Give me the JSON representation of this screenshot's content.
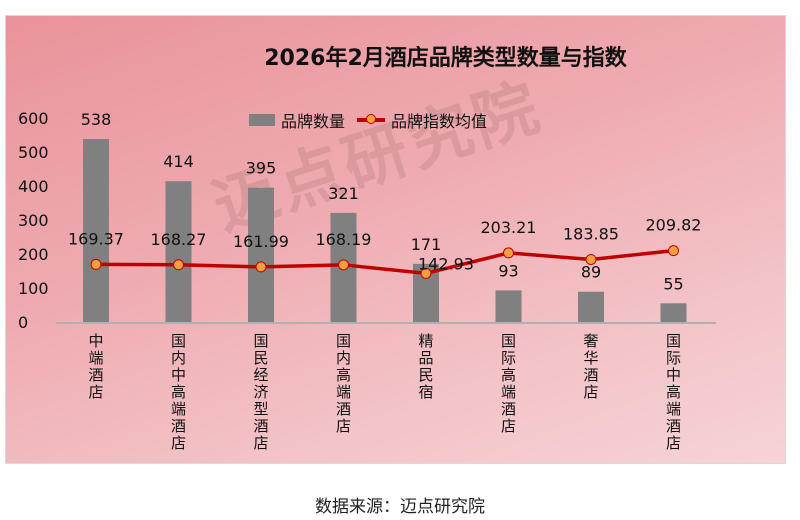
{
  "chart_data": {
    "type": "bar+line",
    "title": "2026年2月酒店品牌类型数量与指数",
    "categories": [
      "中端酒店",
      "国内中高端酒店",
      "国民经济型酒店",
      "国内高端酒店",
      "精品民宿",
      "国际高端酒店",
      "奢华酒店",
      "国际中高端酒店"
    ],
    "series": [
      {
        "name": "品牌数量",
        "type": "bar",
        "values": [
          538,
          414,
          395,
          321,
          171,
          93,
          89,
          55
        ]
      },
      {
        "name": "品牌指数均值",
        "type": "line",
        "values": [
          169.37,
          168.27,
          161.99,
          168.19,
          142.93,
          203.21,
          183.85,
          209.82
        ]
      }
    ],
    "yticks": [
      0,
      100,
      200,
      300,
      400,
      500,
      600
    ],
    "ylim": [
      0,
      600
    ],
    "legend": "top-center",
    "grid": false,
    "colors": {
      "bar": "#808080",
      "line": "#c00000",
      "marker": "#f5a040"
    }
  },
  "watermark": "迈点研究院",
  "caption": "数据来源：迈点研究院"
}
